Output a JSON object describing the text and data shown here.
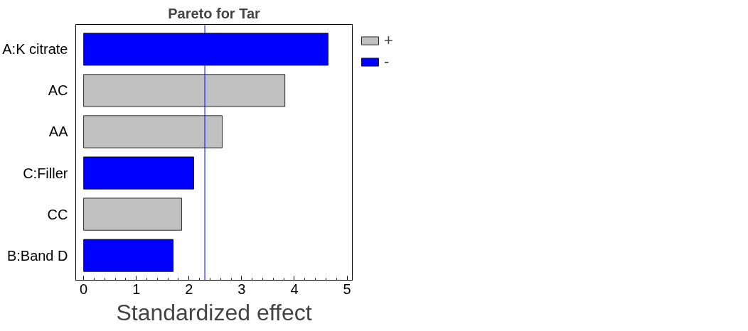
{
  "chart_data": {
    "type": "bar",
    "orientation": "horizontal",
    "title": "Pareto for Tar",
    "xlabel": "Standardized effect",
    "categories": [
      "A:K citrate",
      "AC",
      "AA",
      "C:Filler",
      "CC",
      "B:Band D"
    ],
    "series": [
      {
        "name": "+",
        "color": "#c0c0c0",
        "values": [
          null,
          3.82,
          2.63,
          null,
          1.86,
          null
        ]
      },
      {
        "name": "-",
        "color": "#0000ff",
        "values": [
          4.64,
          null,
          null,
          2.09,
          null,
          1.7
        ]
      }
    ],
    "xlim": [
      -0.15,
      5.1
    ],
    "xticks": [
      0,
      1,
      2,
      3,
      4,
      5
    ],
    "ref_lines": [
      {
        "axis": "x",
        "value": 2.3,
        "color": "#0000ff"
      }
    ],
    "grid": false,
    "legend": "top right"
  }
}
